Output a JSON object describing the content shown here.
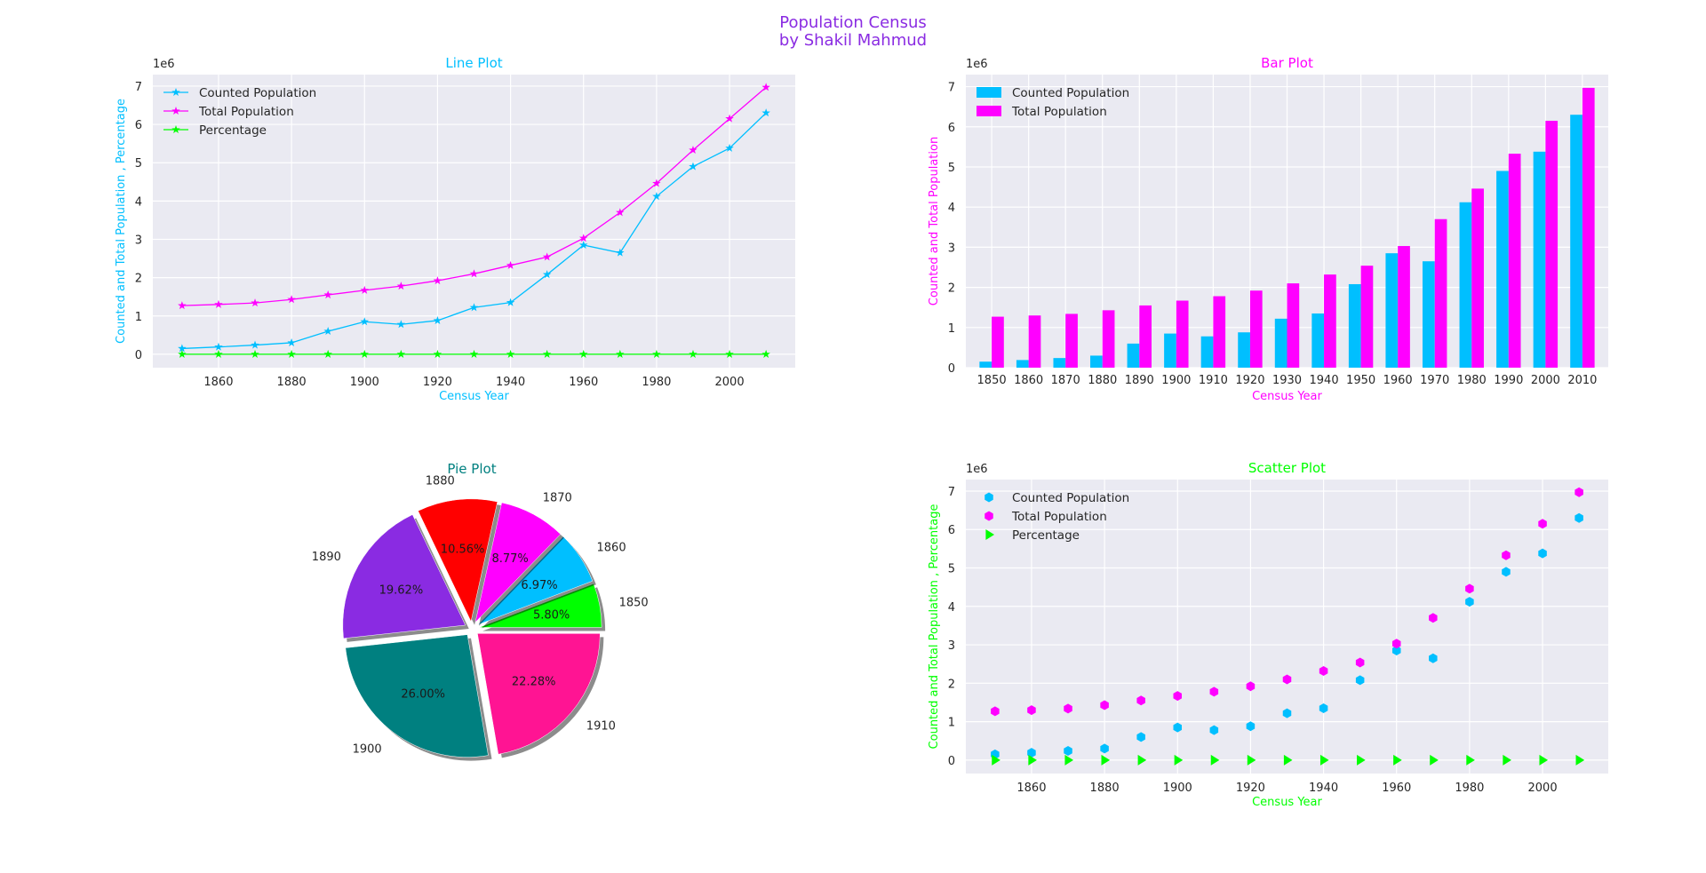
{
  "figure": {
    "title_line1": "Population Census",
    "title_line2": "by Shakil Mahmud",
    "title_color": "#8a2be2"
  },
  "colors": {
    "counted": "#00bfff",
    "total": "#ff00ff",
    "percentage": "#00ff00",
    "axes_bg": "#eaeaf2",
    "grid": "#ffffff"
  },
  "chart_data": [
    {
      "type": "line",
      "title": "Line Plot",
      "title_color": "#00bfff",
      "xlabel": "Census Year",
      "ylabel": "Counted and Total Population , Percentage",
      "label_color": "#00bfff",
      "offset_text": "1e6",
      "x": [
        1850,
        1860,
        1870,
        1880,
        1890,
        1900,
        1910,
        1920,
        1930,
        1940,
        1950,
        1960,
        1970,
        1980,
        1990,
        2000,
        2010
      ],
      "xticks": [
        "1860",
        "1880",
        "1900",
        "1920",
        "1940",
        "1960",
        "1980",
        "2000"
      ],
      "yticks": [
        "0",
        "1",
        "2",
        "3",
        "4",
        "5",
        "6",
        "7"
      ],
      "xlim": [
        1842,
        2018
      ],
      "ylim": [
        -0.35,
        7.3
      ],
      "legend": "upper-left",
      "series": [
        {
          "name": "Counted Population",
          "color": "#00bfff",
          "values": [
            0.15,
            0.19,
            0.24,
            0.3,
            0.6,
            0.85,
            0.78,
            0.88,
            1.22,
            1.35,
            2.08,
            2.85,
            2.65,
            4.12,
            4.9,
            5.38,
            6.3
          ]
        },
        {
          "name": "Total Population",
          "color": "#ff00ff",
          "values": [
            1.27,
            1.3,
            1.34,
            1.43,
            1.55,
            1.67,
            1.78,
            1.92,
            2.1,
            2.32,
            2.54,
            3.03,
            3.7,
            4.46,
            5.33,
            6.15,
            6.97
          ]
        },
        {
          "name": "Percentage",
          "color": "#00ff00",
          "values": [
            0,
            0,
            0,
            0,
            0,
            0,
            0,
            0,
            0,
            0,
            0,
            0,
            0,
            0,
            0,
            0,
            0
          ]
        }
      ]
    },
    {
      "type": "bar",
      "title": "Bar Plot",
      "title_color": "#ff00ff",
      "xlabel": "Census Year",
      "ylabel": "Counted and Total Population",
      "label_color": "#ff00ff",
      "offset_text": "1e6",
      "categories": [
        "1850",
        "1860",
        "1870",
        "1880",
        "1890",
        "1900",
        "1910",
        "1920",
        "1930",
        "1940",
        "1950",
        "1960",
        "1970",
        "1980",
        "1990",
        "2000",
        "2010"
      ],
      "yticks": [
        "0",
        "1",
        "2",
        "3",
        "4",
        "5",
        "6",
        "7"
      ],
      "ylim": [
        0,
        7.3
      ],
      "legend": "upper-left",
      "series": [
        {
          "name": "Counted Population",
          "color": "#00bfff",
          "values": [
            0.15,
            0.19,
            0.24,
            0.3,
            0.6,
            0.85,
            0.78,
            0.88,
            1.22,
            1.35,
            2.08,
            2.85,
            2.65,
            4.12,
            4.9,
            5.38,
            6.3
          ]
        },
        {
          "name": "Total Population",
          "color": "#ff00ff",
          "values": [
            1.27,
            1.3,
            1.34,
            1.43,
            1.55,
            1.67,
            1.78,
            1.92,
            2.1,
            2.32,
            2.54,
            3.03,
            3.7,
            4.46,
            5.33,
            6.15,
            6.97
          ]
        }
      ]
    },
    {
      "type": "pie",
      "title": "Pie Plot",
      "title_color": "#008080",
      "slices": [
        {
          "label": "1850",
          "pct": 5.8,
          "pct_text": "5.80%",
          "color": "#00ff00"
        },
        {
          "label": "1860",
          "pct": 6.97,
          "pct_text": "6.97%",
          "color": "#00bfff"
        },
        {
          "label": "1870",
          "pct": 8.77,
          "pct_text": "8.77%",
          "color": "#ff00ff"
        },
        {
          "label": "1880",
          "pct": 10.56,
          "pct_text": "10.56%",
          "color": "#ff0000"
        },
        {
          "label": "1890",
          "pct": 19.62,
          "pct_text": "19.62%",
          "color": "#8a2be2"
        },
        {
          "label": "1900",
          "pct": 26.0,
          "pct_text": "26.00%",
          "color": "#008080"
        },
        {
          "label": "1910",
          "pct": 22.28,
          "pct_text": "22.28%",
          "color": "#ff1493"
        }
      ]
    },
    {
      "type": "scatter",
      "title": "Scatter Plot",
      "title_color": "#00ff00",
      "xlabel": "Census Year",
      "ylabel": "Counted and Total Population , Percentage",
      "label_color": "#00ff00",
      "offset_text": "1e6",
      "x": [
        1850,
        1860,
        1870,
        1880,
        1890,
        1900,
        1910,
        1920,
        1930,
        1940,
        1950,
        1960,
        1970,
        1980,
        1990,
        2000,
        2010
      ],
      "xticks": [
        "1860",
        "1880",
        "1900",
        "1920",
        "1940",
        "1960",
        "1980",
        "2000"
      ],
      "yticks": [
        "0",
        "1",
        "2",
        "3",
        "4",
        "5",
        "6",
        "7"
      ],
      "xlim": [
        1842,
        2018
      ],
      "ylim": [
        -0.35,
        7.3
      ],
      "legend": "upper-left",
      "series": [
        {
          "name": "Counted Population",
          "color": "#00bfff",
          "marker": "hexagon",
          "values": [
            0.15,
            0.19,
            0.24,
            0.3,
            0.6,
            0.85,
            0.78,
            0.88,
            1.22,
            1.35,
            2.08,
            2.85,
            2.65,
            4.12,
            4.9,
            5.38,
            6.3
          ]
        },
        {
          "name": "Total Population",
          "color": "#ff00ff",
          "marker": "hexagon",
          "values": [
            1.27,
            1.3,
            1.34,
            1.43,
            1.55,
            1.67,
            1.78,
            1.92,
            2.1,
            2.32,
            2.54,
            3.03,
            3.7,
            4.46,
            5.33,
            6.15,
            6.97
          ]
        },
        {
          "name": "Percentage",
          "color": "#00ff00",
          "marker": "triangle-right",
          "values": [
            0,
            0,
            0,
            0,
            0,
            0,
            0,
            0,
            0,
            0,
            0,
            0,
            0,
            0,
            0,
            0,
            0
          ]
        }
      ]
    }
  ]
}
